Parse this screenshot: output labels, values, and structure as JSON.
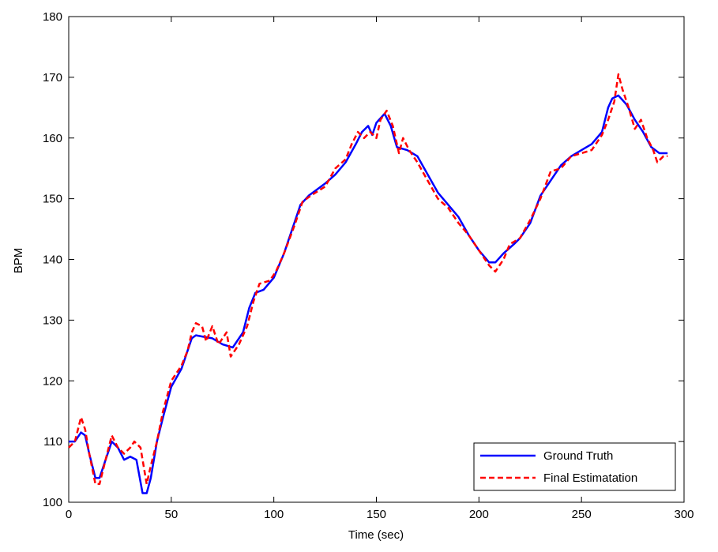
{
  "chart_data": {
    "type": "line",
    "xlabel": "Time (sec)",
    "ylabel": "BPM",
    "xlim": [
      0,
      300
    ],
    "xticks": [
      0,
      50,
      100,
      150,
      200,
      250,
      300
    ],
    "ylim": [
      100,
      180
    ],
    "yticks": [
      100,
      110,
      120,
      130,
      140,
      150,
      160,
      170,
      180
    ],
    "grid": false,
    "legend_position": "lower right",
    "series": [
      {
        "name": "Ground Truth",
        "color": "#0000ff",
        "line_style": "solid",
        "x": [
          0,
          3,
          6,
          8,
          10,
          13,
          15,
          18,
          21,
          24,
          27,
          30,
          33,
          36,
          38,
          40,
          43,
          46,
          50,
          55,
          58,
          60,
          62,
          65,
          70,
          75,
          80,
          85,
          88,
          91,
          95,
          100,
          105,
          110,
          113,
          117,
          125,
          130,
          135,
          140,
          143,
          146,
          148,
          150,
          154,
          157,
          160,
          165,
          170,
          175,
          180,
          185,
          190,
          195,
          200,
          205,
          208,
          212,
          217,
          220,
          225,
          230,
          235,
          240,
          245,
          250,
          255,
          260,
          263,
          265,
          268,
          272,
          276,
          280,
          284,
          288,
          292
        ],
        "values": [
          110,
          110,
          111.5,
          111,
          108,
          104,
          104,
          107,
          110,
          109,
          107,
          107.5,
          107,
          101.5,
          101.5,
          104,
          110,
          114,
          119,
          122,
          125,
          127,
          127.5,
          127.3,
          127,
          126,
          125.5,
          128,
          132,
          134.5,
          135,
          137,
          141,
          146,
          149,
          150.5,
          152.5,
          154,
          156,
          159,
          161,
          162,
          160.5,
          162.5,
          164,
          162,
          158.5,
          158,
          157,
          154,
          151,
          149,
          147,
          144,
          141.5,
          139.5,
          139.5,
          141,
          142.5,
          143.5,
          146,
          150.5,
          153,
          155.5,
          157,
          158,
          159,
          161,
          165,
          166.5,
          167,
          165.5,
          163,
          161,
          158.5,
          157.5,
          157.5
        ]
      },
      {
        "name": "Final Estimatation",
        "color": "#ff0000",
        "line_style": "dashed",
        "x": [
          0,
          3,
          6,
          8,
          10,
          13,
          15,
          18,
          21,
          24,
          27,
          30,
          32,
          35,
          38,
          40,
          43,
          46,
          50,
          55,
          58,
          60,
          62,
          65,
          67,
          70,
          73,
          77,
          79,
          83,
          87,
          90,
          93,
          98,
          101,
          105,
          110,
          114,
          118,
          125,
          130,
          135,
          138,
          141,
          144,
          147,
          150,
          152,
          155,
          158,
          161,
          163,
          166,
          170,
          175,
          180,
          185,
          190,
          195,
          200,
          205,
          208,
          212,
          215,
          220,
          225,
          230,
          235,
          240,
          245,
          250,
          255,
          260,
          263,
          266,
          268,
          270,
          273,
          276,
          279,
          282,
          285,
          287,
          290,
          292
        ],
        "values": [
          109,
          110,
          114,
          112,
          108,
          103,
          103,
          107,
          111,
          109,
          108,
          109,
          110,
          109,
          103,
          106,
          110,
          115,
          120,
          122.5,
          125,
          128,
          129.5,
          129,
          126.5,
          129,
          126,
          128,
          124,
          126,
          129,
          133,
          136,
          136.5,
          138,
          141,
          145.5,
          149.5,
          150.5,
          152,
          155,
          156.5,
          159,
          161,
          160,
          161,
          160,
          163,
          164.5,
          162,
          157.5,
          160,
          158,
          156,
          153,
          150,
          148.5,
          146,
          144,
          141.5,
          139,
          138,
          140,
          142.5,
          143.5,
          146.5,
          150,
          154.5,
          155,
          157,
          157.5,
          158,
          160.5,
          163,
          166,
          170.5,
          168,
          165,
          161.5,
          163,
          160,
          158,
          156,
          157,
          157
        ]
      }
    ]
  }
}
